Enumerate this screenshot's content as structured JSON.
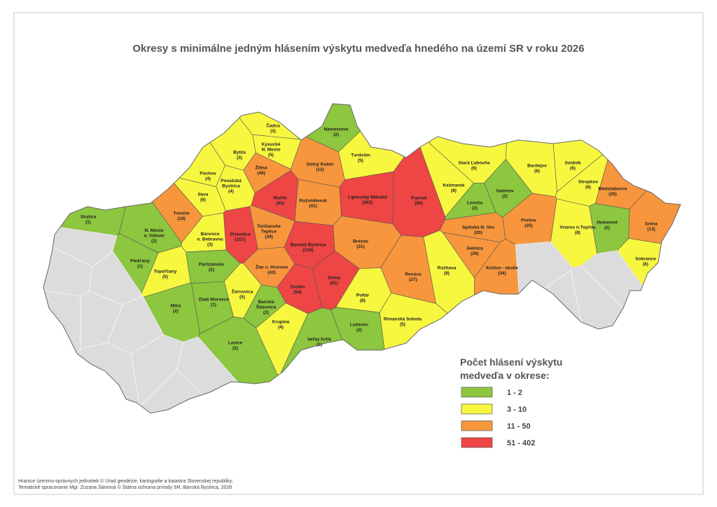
{
  "title": "Okresy s minimálne jedným hlásením výskytu medveďa hnedého na území SR v roku 2026",
  "legend": {
    "title": [
      "Počet hlásení výskytu",
      "medveďa v okrese:"
    ],
    "items": [
      {
        "label": "1 - 2",
        "color": "#8dc63f"
      },
      {
        "label": "3 - 10",
        "color": "#f7f740"
      },
      {
        "label": "11 - 50",
        "color": "#f7963d"
      },
      {
        "label": "51 - 402",
        "color": "#ee4545"
      }
    ]
  },
  "districts": [
    {
      "name": [
        "Čadca"
      ],
      "count": "(3)",
      "class": 1
    },
    {
      "name": [
        "Námestovo"
      ],
      "count": "(2)",
      "class": 0
    },
    {
      "name": [
        "Kysucké",
        "N. Mesto"
      ],
      "count": "(5)",
      "class": 1
    },
    {
      "name": [
        "Bytča"
      ],
      "count": "(3)",
      "class": 1
    },
    {
      "name": [
        "Tvrdošín"
      ],
      "count": "(5)",
      "class": 1
    },
    {
      "name": [
        "Žilina"
      ],
      "count": "(48)",
      "class": 2
    },
    {
      "name": [
        "Dolný Kubín"
      ],
      "count": "(12)",
      "class": 2
    },
    {
      "name": [
        "Púchov"
      ],
      "count": "(4)",
      "class": 1
    },
    {
      "name": [
        "Považská",
        "Bystrica"
      ],
      "count": "(4)",
      "class": 1
    },
    {
      "name": [
        "Ilava"
      ],
      "count": "(6)",
      "class": 1
    },
    {
      "name": [
        "Martin"
      ],
      "count": "(93)",
      "class": 3
    },
    {
      "name": [
        "Ružomberok"
      ],
      "count": "(41)",
      "class": 2
    },
    {
      "name": [
        "Liptovský Mikuláš"
      ],
      "count": "(402)",
      "class": 3
    },
    {
      "name": [
        "Poprad"
      ],
      "count": "(96)",
      "class": 3
    },
    {
      "name": [
        "Stará Ľubovňa"
      ],
      "count": "(6)",
      "class": 1
    },
    {
      "name": [
        "Bardejov"
      ],
      "count": "(6)",
      "class": 1
    },
    {
      "name": [
        "Svidník"
      ],
      "count": "(6)",
      "class": 1
    },
    {
      "name": [
        "Stropkov"
      ],
      "count": "(6)",
      "class": 1
    },
    {
      "name": [
        "Medzilaborce"
      ],
      "count": "(20)",
      "class": 2
    },
    {
      "name": [
        "Kežmarok"
      ],
      "count": "(8)",
      "class": 1
    },
    {
      "name": [
        "Sabinov"
      ],
      "count": "(2)",
      "class": 0
    },
    {
      "name": [
        "Levoča"
      ],
      "count": "(2)",
      "class": 0
    },
    {
      "name": [
        "Skalica"
      ],
      "count": "(1)",
      "class": 0
    },
    {
      "name": [
        "Trenčín"
      ],
      "count": "(18)",
      "class": 2
    },
    {
      "name": [
        "Prievidza"
      ],
      "count": "(157)",
      "class": 3
    },
    {
      "name": [
        "Turčianske",
        "Teplice"
      ],
      "count": "(39)",
      "class": 2
    },
    {
      "name": [
        "Humenné"
      ],
      "count": "(2)",
      "class": 0
    },
    {
      "name": [
        "Snina"
      ],
      "count": "(13)",
      "class": 2
    },
    {
      "name": [
        "Prešov"
      ],
      "count": "(25)",
      "class": 2
    },
    {
      "name": [
        "Vranov n.Topľou"
      ],
      "count": "(8)",
      "class": 1
    },
    {
      "name": [
        "Spišská N. Ves"
      ],
      "count": "(20)",
      "class": 2
    },
    {
      "name": [
        "N. Mesto",
        "n. Váhom"
      ],
      "count": "(2)",
      "class": 0
    },
    {
      "name": [
        "Bánovce",
        "n. Bebravou"
      ],
      "count": "(3)",
      "class": 1
    },
    {
      "name": [
        "Banská Bystrica"
      ],
      "count": "(219)",
      "class": 3
    },
    {
      "name": [
        "Brezno"
      ],
      "count": "(31)",
      "class": 2
    },
    {
      "name": [
        "Gelnica"
      ],
      "count": "(26)",
      "class": 2
    },
    {
      "name": [
        "Sobrance"
      ],
      "count": "(8)",
      "class": 1
    },
    {
      "name": [
        "Piešťany"
      ],
      "count": "(1)",
      "class": 0
    },
    {
      "name": [
        "Partizánske"
      ],
      "count": "(2)",
      "class": 0
    },
    {
      "name": [
        "Žiar n. Hronom"
      ],
      "count": "(43)",
      "class": 2
    },
    {
      "name": [
        "Košice - okolie"
      ],
      "count": "(34)",
      "class": 2
    },
    {
      "name": [
        "Topoľčany"
      ],
      "count": "(5)",
      "class": 1
    },
    {
      "name": [
        "Revúca"
      ],
      "count": "(27)",
      "class": 2
    },
    {
      "name": [
        "Rožňava"
      ],
      "count": "(8)",
      "class": 1
    },
    {
      "name": [
        "Zvolen"
      ],
      "count": "(54)",
      "class": 3
    },
    {
      "name": [
        "Detva"
      ],
      "count": "(61)",
      "class": 3
    },
    {
      "name": [
        "Žarnovica"
      ],
      "count": "(5)",
      "class": 1
    },
    {
      "name": [
        "Zlaté Moravce"
      ],
      "count": "(1)",
      "class": 0
    },
    {
      "name": [
        "Banská",
        "Štiavnica"
      ],
      "count": "(2)",
      "class": 0
    },
    {
      "name": [
        "Poltár"
      ],
      "count": "(8)",
      "class": 1
    },
    {
      "name": [
        "Nitra"
      ],
      "count": "(2)",
      "class": 0
    },
    {
      "name": [
        "Rimavská Sobota"
      ],
      "count": "(5)",
      "class": 1
    },
    {
      "name": [
        "Krupina"
      ],
      "count": "(4)",
      "class": 1
    },
    {
      "name": [
        "Lučenec"
      ],
      "count": "(2)",
      "class": 0
    },
    {
      "name": [
        "Veľký Krtíš"
      ],
      "count": "(1)",
      "class": 0
    },
    {
      "name": [
        "Levice"
      ],
      "count": "(2)",
      "class": 0
    }
  ],
  "footer": [
    "Hranice územno-správnych jednotiek © Úrad geodézie, kartografie a katastra Slovenskej republiky;",
    "Tematické spracovanie Mgr. Zuzana Šántová © Štátna ochrana prírody SR, Banská Bystrica, 2026"
  ]
}
